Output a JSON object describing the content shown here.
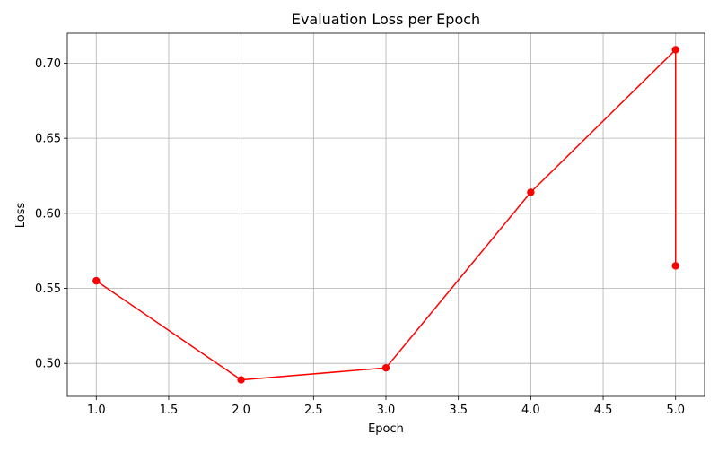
{
  "chart_data": {
    "type": "line",
    "title": "Evaluation Loss per Epoch",
    "xlabel": "Epoch",
    "ylabel": "Loss",
    "x_ticks": [
      "1.0",
      "1.5",
      "2.0",
      "2.5",
      "3.0",
      "3.5",
      "4.0",
      "4.5",
      "5.0"
    ],
    "y_ticks": [
      "0.50",
      "0.55",
      "0.60",
      "0.65",
      "0.70"
    ],
    "xlim": [
      0.8,
      5.2
    ],
    "ylim": [
      0.478,
      0.72
    ],
    "grid": true,
    "series": [
      {
        "color": "#ff0000",
        "marker": "circle",
        "x": [
          1.0,
          2.0,
          3.0,
          4.0,
          5.0,
          5.0
        ],
        "y": [
          0.555,
          0.489,
          0.497,
          0.614,
          0.709,
          0.565
        ]
      }
    ]
  }
}
